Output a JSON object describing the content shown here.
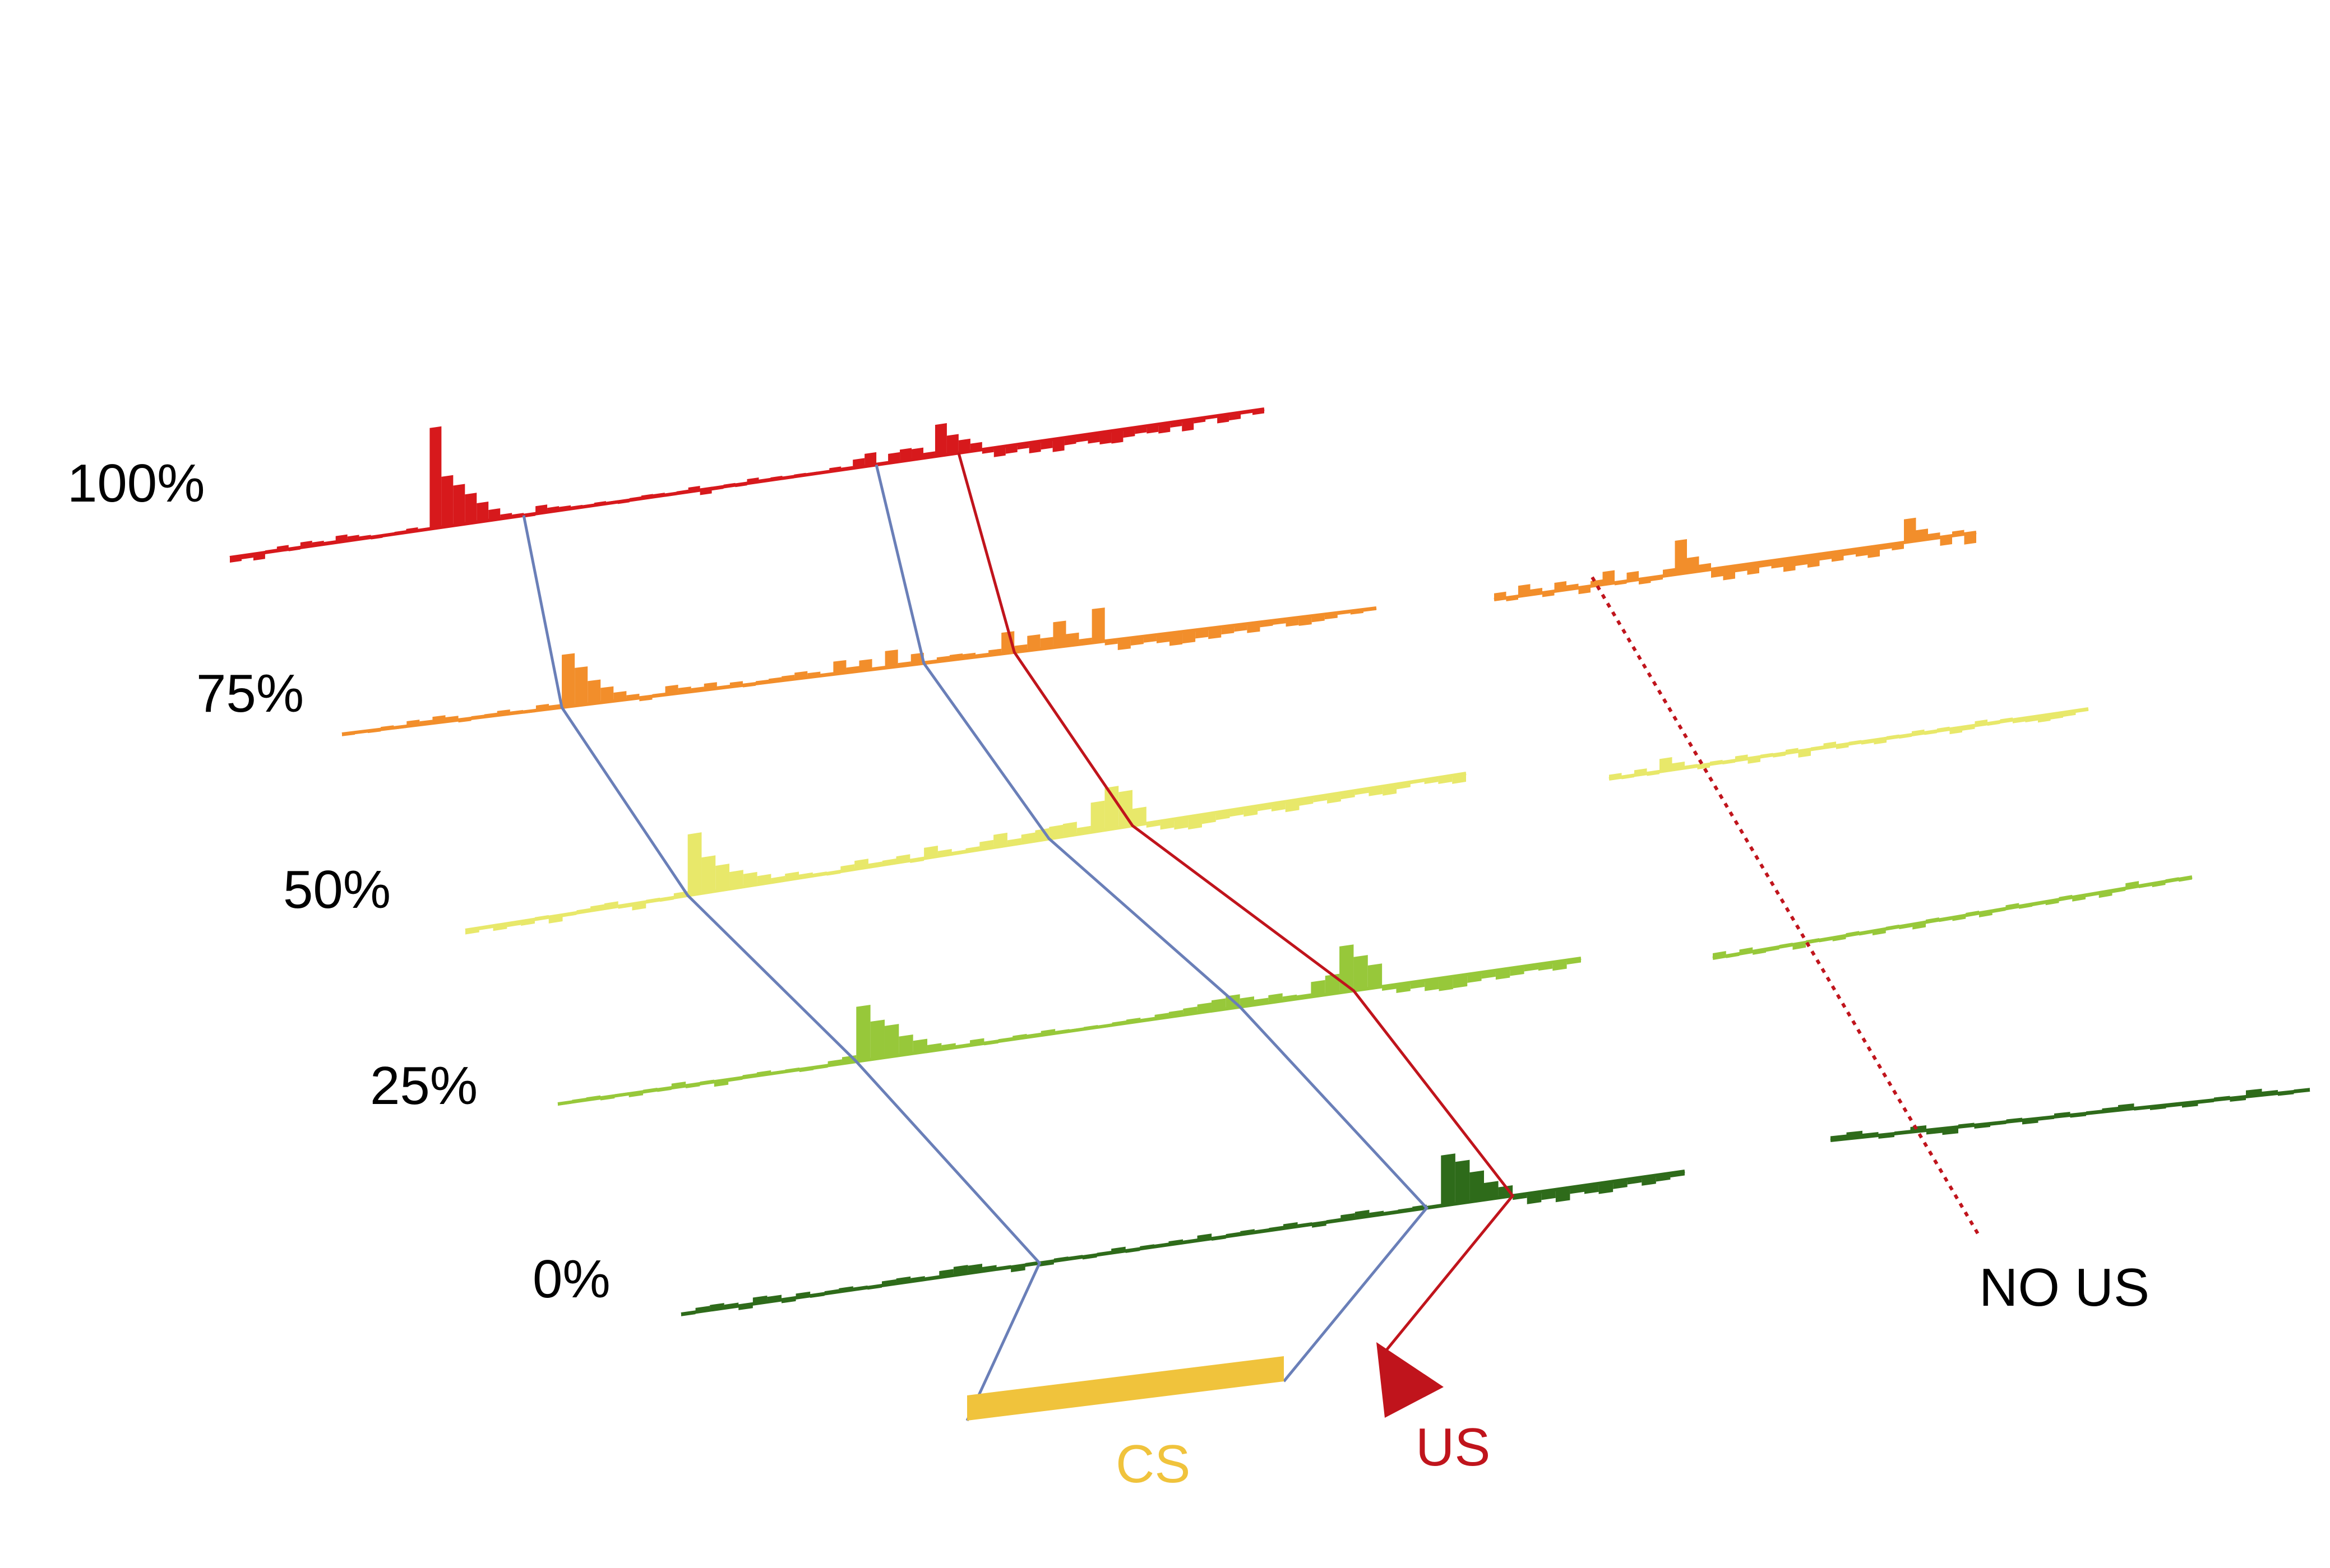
{
  "chart_data": {
    "type": "bar",
    "title": "",
    "xlabel": "",
    "ylabel": "",
    "description_of_axes": "",
    "row_labels": [
      "100%",
      "75%",
      "50%",
      "25%",
      "0%"
    ],
    "series": [
      {
        "name": "100%",
        "color": "#d7191c",
        "values": [
          -0.12,
          -0.08,
          -0.15,
          0.05,
          0.1,
          -0.05,
          0.12,
          0.08,
          0.05,
          0.15,
          0.1,
          0.06,
          -0.05,
          0.04,
          0.05,
          0.08,
          0.04,
          2.4,
          1.2,
          0.95,
          0.7,
          0.45,
          0.25,
          0.1,
          0.06,
          -0.05,
          0.18,
          0.1,
          0.08,
          0.05,
          0.04,
          0.06,
          0.04,
          -0.05,
          0.05,
          0.07,
          0.06,
          -0.04,
          0.05,
          0.1,
          -0.12,
          -0.05,
          0.05,
          -0.05,
          0.1,
          0.05,
          0.06,
          -0.04,
          0.05,
          0.04,
          0.02,
          0.08,
          0.05,
          0.2,
          0.3,
          0.05,
          0.22,
          0.28,
          0.25,
          0.12,
          0.75,
          0.45,
          0.3,
          0.18,
          -0.1,
          -0.22,
          -0.18,
          -0.12,
          -0.25,
          -0.2,
          -0.3,
          -0.18,
          -0.15,
          -0.22,
          -0.28,
          -0.3,
          -0.2,
          -0.15,
          -0.18,
          -0.22,
          -0.12,
          -0.25,
          -0.1,
          -0.05,
          -0.18,
          -0.15,
          -0.05,
          -0.1
        ],
        "event_bins": {
          "cs_start": 25,
          "cs_end": 55,
          "us": 62
        }
      },
      {
        "name": "75%",
        "color": "#f28e2b",
        "values": [
          -0.05,
          0.02,
          -0.05,
          0.06,
          -0.04,
          0.12,
          0.08,
          0.15,
          0.1,
          -0.06,
          0.05,
          0.06,
          0.1,
          0.05,
          -0.04,
          0.12,
          0.08,
          1.25,
          0.9,
          0.55,
          0.35,
          0.2,
          0.1,
          -0.08,
          0.05,
          0.2,
          0.12,
          0.08,
          0.15,
          0.05,
          0.1,
          -0.05,
          0.06,
          0.08,
          0.1,
          0.15,
          0.1,
          0.05,
          0.3,
          0.12,
          0.25,
          0.05,
          0.4,
          0.08,
          0.25,
          0.05,
          0.1,
          0.12,
          0.1,
          0.06,
          0.12,
          0.5,
          0.15,
          0.35,
          0.25,
          0.6,
          0.28,
          0.12,
          0.8,
          -0.1,
          -0.25,
          -0.18,
          -0.15,
          -0.2,
          -0.3,
          -0.28,
          -0.2,
          -0.25,
          -0.18,
          -0.15,
          -0.22,
          -0.12,
          -0.1,
          -0.18,
          -0.2,
          -0.15,
          -0.12,
          -0.05,
          -0.08,
          -0.05
        ],
        "event_bins": {
          "cs_start": 17,
          "cs_end": 45,
          "us": 52
        }
      },
      {
        "name": "50%",
        "color": "#e8e86a",
        "values": [
          -0.1,
          -0.05,
          -0.12,
          -0.08,
          -0.1,
          0.05,
          -0.15,
          -0.05,
          0.06,
          0.1,
          0.12,
          -0.06,
          -0.15,
          0.05,
          -0.05,
          0.1,
          1.45,
          0.85,
          0.6,
          0.4,
          0.3,
          0.2,
          0.1,
          0.15,
          0.08,
          0.05,
          -0.05,
          0.12,
          0.2,
          0.08,
          0.1,
          0.15,
          -0.06,
          0.25,
          0.12,
          0.05,
          0.08,
          0.18,
          0.3,
          0.12,
          0.2,
          0.25,
          0.28,
          0.3,
          0.15,
          0.7,
          1.0,
          0.85,
          0.4,
          -0.1,
          -0.2,
          -0.25,
          -0.3,
          -0.22,
          -0.18,
          -0.15,
          -0.2,
          -0.12,
          -0.18,
          -0.25,
          -0.15,
          -0.12,
          -0.2,
          -0.15,
          -0.1,
          -0.18,
          -0.22,
          -0.12,
          -0.05,
          -0.1,
          -0.15,
          -0.2
        ],
        "event_bins": {
          "cs_start": 16,
          "cs_end": 42,
          "us": 48
        }
      },
      {
        "name": "25%",
        "color": "#97c83a",
        "values": [
          -0.04,
          0.05,
          0.06,
          -0.06,
          0.04,
          -0.08,
          0.05,
          -0.05,
          0.1,
          -0.06,
          0.05,
          -0.12,
          -0.05,
          0.06,
          0.08,
          0.04,
          0.05,
          -0.06,
          -0.05,
          0.1,
          0.15,
          1.3,
          0.9,
          0.75,
          0.45,
          0.3,
          0.15,
          0.1,
          0.05,
          0.12,
          -0.05,
          0.05,
          0.08,
          0.06,
          0.1,
          0.05,
          0.04,
          0.05,
          -0.04,
          0.06,
          0.08,
          0.05,
          0.1,
          0.12,
          0.15,
          0.2,
          0.25,
          0.3,
          0.2,
          0.12,
          0.18,
          0.1,
          0.08,
          0.35,
          0.45,
          1.1,
          0.8,
          0.55,
          -0.1,
          -0.2,
          -0.15,
          -0.25,
          -0.3,
          -0.28,
          -0.2,
          -0.15,
          -0.22,
          -0.18,
          -0.12,
          -0.15,
          -0.2,
          -0.1
        ],
        "event_bins": {
          "cs_start": 21,
          "cs_end": 48,
          "us": 56
        }
      },
      {
        "name": "0%",
        "color": "#2e6b1a",
        "values": [
          -0.05,
          0.1,
          0.12,
          0.08,
          -0.1,
          0.15,
          0.12,
          -0.08,
          0.1,
          -0.05,
          0.06,
          0.08,
          0.05,
          -0.05,
          0.1,
          0.12,
          0.08,
          0.05,
          0.15,
          0.2,
          0.18,
          0.1,
          0.05,
          -0.12,
          0.05,
          -0.08,
          0.06,
          0.05,
          -0.06,
          0.05,
          0.1,
          -0.05,
          0.06,
          0.05,
          0.08,
          0.05,
          0.12,
          -0.05,
          0.06,
          0.08,
          0.05,
          0.06,
          0.1,
          0.05,
          -0.08,
          0.05,
          0.12,
          0.15,
          0.08,
          0.05,
          0.06,
          0.08,
          0.05,
          1.2,
          1.0,
          0.7,
          0.4,
          0.25,
          -0.1,
          -0.25,
          -0.2,
          -0.3,
          -0.15,
          -0.2,
          -0.25,
          -0.18,
          -0.12,
          -0.2,
          -0.15,
          -0.1
        ],
        "event_bins": {
          "cs_start": 25,
          "cs_end": 52,
          "us": 58
        }
      }
    ],
    "no_us_series": [
      {
        "name": "75%",
        "color": "#f28e2b",
        "values": [
          0.15,
          -0.08,
          0.25,
          0.12,
          -0.1,
          0.2,
          0.1,
          -0.15,
          0.12,
          0.3,
          -0.06,
          0.2,
          -0.12,
          -0.08,
          0.15,
          0.8,
          0.35,
          0.15,
          -0.2,
          -0.3,
          -0.15,
          -0.25,
          -0.12,
          -0.18,
          -0.3,
          -0.2,
          -0.28,
          -0.15,
          -0.22,
          -0.12,
          -0.18,
          -0.25,
          -0.1,
          -0.15,
          0.55,
          0.25,
          0.12,
          -0.2,
          0.1,
          -0.25
        ]
      },
      {
        "name": "50%",
        "color": "#e8e86a",
        "values": [
          0.1,
          -0.05,
          0.12,
          -0.06,
          0.3,
          0.15,
          0.05,
          -0.08,
          0.06,
          -0.05,
          0.1,
          -0.12,
          0.05,
          -0.06,
          0.08,
          -0.15,
          0.05,
          0.1,
          -0.08,
          0.05,
          -0.06,
          -0.1,
          0.05,
          -0.05,
          0.08,
          -0.05,
          0.06,
          -0.12,
          -0.08,
          0.1,
          -0.05,
          0.06,
          -0.08,
          -0.1,
          -0.15,
          -0.12,
          -0.1,
          -0.05
        ]
      },
      {
        "name": "25%",
        "color": "#97c83a",
        "values": [
          0.12,
          -0.05,
          0.1,
          -0.08,
          -0.06,
          0.05,
          -0.12,
          0.05,
          -0.05,
          -0.08,
          0.06,
          -0.05,
          -0.1,
          0.05,
          -0.06,
          -0.12,
          0.06,
          -0.05,
          -0.08,
          0.06,
          -0.1,
          -0.05,
          0.08,
          -0.06,
          -0.05,
          -0.08,
          0.06,
          -0.1,
          -0.05,
          -0.12,
          -0.06,
          0.12,
          -0.05,
          -0.08,
          0.05,
          -0.06
        ]
      },
      {
        "name": "0%",
        "color": "#2e6b1a",
        "values": [
          0.1,
          0.15,
          0.08,
          -0.08,
          0.05,
          0.12,
          -0.1,
          -0.15,
          0.06,
          -0.08,
          -0.05,
          0.06,
          -0.1,
          -0.05,
          0.08,
          -0.06,
          0.05,
          0.08,
          0.12,
          -0.05,
          -0.08,
          -0.06,
          -0.1,
          -0.05,
          0.06,
          -0.08,
          0.15,
          0.08,
          -0.06,
          0.05
        ]
      }
    ],
    "annotations": {
      "cs_label": "CS",
      "us_label": "US",
      "no_us_label": "NO US"
    },
    "colors": {
      "cs_bar": "#f0c33c",
      "cs_lines": "#6a7fb8",
      "us_line": "#c0141c",
      "us_label": "#c0141c",
      "cs_label": "#f0c33c",
      "no_us_line": "#c0141c"
    }
  }
}
